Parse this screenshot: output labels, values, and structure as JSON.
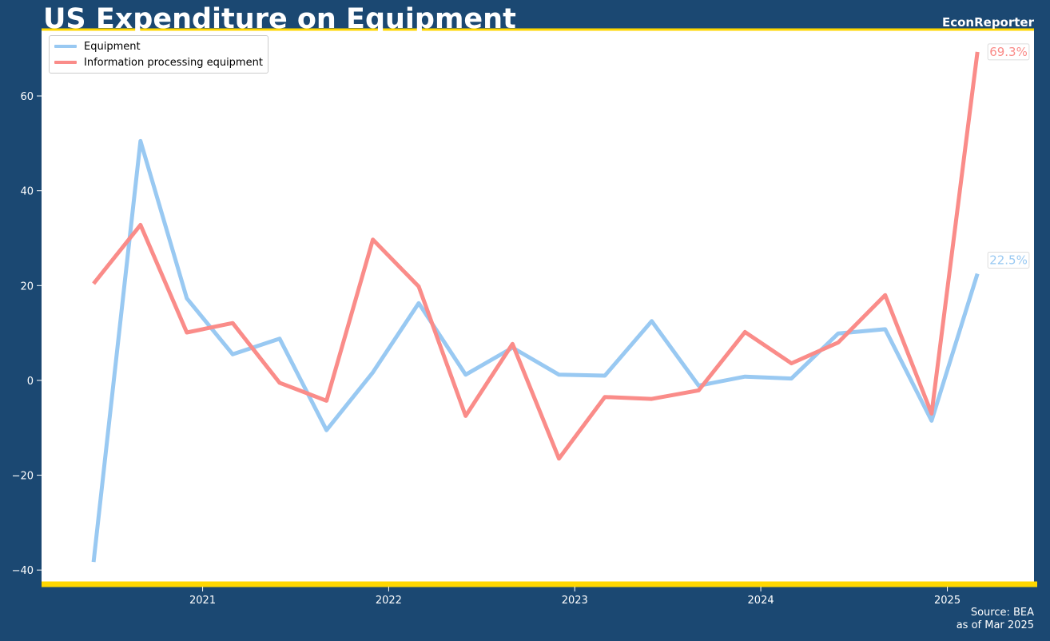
{
  "header": {
    "title": "US Expenditure on Equipment",
    "brand": "EconReporter"
  },
  "footer": {
    "source": "Source: BEA",
    "as_of": "as of Mar 2025"
  },
  "colors": {
    "background": "#1b4872",
    "plot_background": "#ffffff",
    "accent": "#ffd700",
    "equipment": "#99c9f2",
    "info_processing": "#fa8c89"
  },
  "chart_data": {
    "type": "line",
    "title": "US Expenditure on Equipment",
    "xlabel": "",
    "ylabel": "",
    "x_ticks": [
      "2021",
      "2022",
      "2023",
      "2024",
      "2025"
    ],
    "y_ticks": [
      -40,
      -20,
      0,
      20,
      40,
      60
    ],
    "ylim": [
      -43,
      74
    ],
    "xlim": [
      "2020-02-20",
      "2025-06-20"
    ],
    "grid": false,
    "legend_position": "top-left",
    "x": [
      "2020-06-01",
      "2020-09-01",
      "2020-12-01",
      "2021-03-01",
      "2021-06-01",
      "2021-09-01",
      "2021-12-01",
      "2022-03-01",
      "2022-06-01",
      "2022-09-01",
      "2022-12-01",
      "2023-03-01",
      "2023-06-01",
      "2023-09-01",
      "2023-12-01",
      "2024-03-01",
      "2024-06-01",
      "2024-09-01",
      "2024-12-01",
      "2025-03-01"
    ],
    "series": [
      {
        "name": "Equipment",
        "color": "#99c9f2",
        "values": [
          -38.3,
          50.5,
          17.3,
          5.5,
          8.8,
          -10.5,
          1.7,
          16.3,
          1.2,
          6.9,
          1.2,
          1.0,
          12.5,
          -1.1,
          0.8,
          0.4,
          9.9,
          10.8,
          -8.5,
          22.5
        ],
        "end_label": "22.5%"
      },
      {
        "name": "Information processing equipment",
        "color": "#fa8c89",
        "values": [
          20.4,
          32.8,
          10.1,
          12.1,
          -0.5,
          -4.3,
          29.7,
          19.8,
          -7.5,
          7.7,
          -16.5,
          -3.5,
          -3.9,
          -2.1,
          10.2,
          3.6,
          8.0,
          18.0,
          -7.0,
          69.3
        ],
        "end_label": "69.3%"
      }
    ]
  }
}
